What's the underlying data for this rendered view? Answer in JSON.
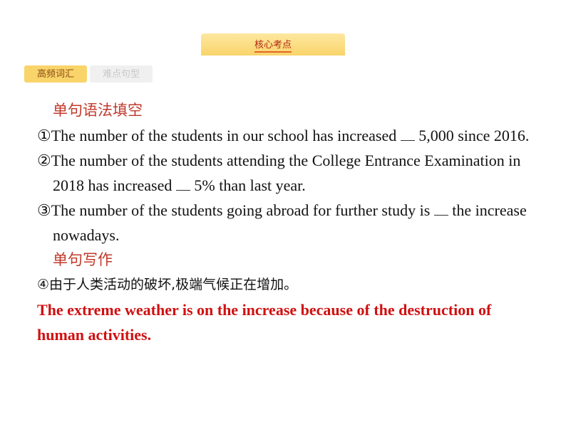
{
  "header": {
    "title": "核心考点"
  },
  "tabs": [
    {
      "label": "高频词汇",
      "active": true
    },
    {
      "label": "难点句型",
      "active": false
    }
  ],
  "section1": {
    "heading": "单句语法填空",
    "items": [
      {
        "before": "①The number of the students in our school has increased ",
        "after": " 5,000 since 2016."
      },
      {
        "before": "②The number of the students attending the College Entrance Examination in 2018 has increased ",
        "after": " 5% than last year."
      },
      {
        "before": "③The number of the students going abroad for further study is ",
        "after": " the increase nowadays."
      }
    ]
  },
  "section2": {
    "heading": "单句写作",
    "prompt": "④由于人类活动的破坏,极端气候正在增加。",
    "answer": "The extreme weather is on the increase because of the destruction of human activities."
  },
  "colors": {
    "accent": "#c0392b",
    "tab": "#f9d46a",
    "answer": "#d01010"
  }
}
